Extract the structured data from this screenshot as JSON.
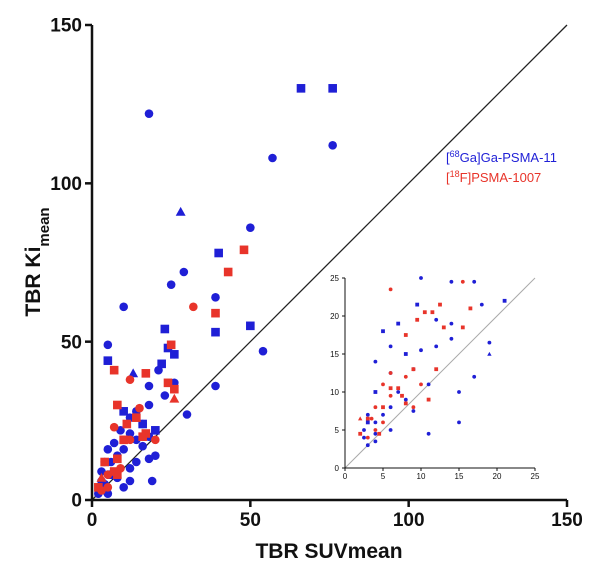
{
  "chart_data": [
    {
      "type": "scatter",
      "title": "",
      "xlabel": "TBR SUVmean",
      "ylabel_main": "TBR Ki",
      "ylabel_sub": "mean",
      "xlim": [
        0,
        150
      ],
      "ylim": [
        0,
        150
      ],
      "xticks": [
        "0",
        "50",
        "100",
        "150"
      ],
      "yticks": [
        "0",
        "50",
        "100",
        "150"
      ],
      "identity_line": true,
      "legend": [
        {
          "pre": "[",
          "sup": "68",
          "post": "Ga]Ga-PSMA-11",
          "color": "#1f1fd6"
        },
        {
          "pre": "[",
          "sup": "18",
          "post": "F]PSMA-1007",
          "color": "#e8342a"
        }
      ],
      "series": [
        {
          "name": "[68Ga]Ga-PSMA-11",
          "color": "#1f1fd6",
          "points": [
            [
              18,
              122,
              "c"
            ],
            [
              66,
              130,
              "s"
            ],
            [
              76,
              130,
              "s"
            ],
            [
              76,
              112,
              "c"
            ],
            [
              57,
              108,
              "c"
            ],
            [
              28,
              91,
              "t"
            ],
            [
              50,
              86,
              "c"
            ],
            [
              40,
              78,
              "s"
            ],
            [
              29,
              72,
              "c"
            ],
            [
              25,
              68,
              "c"
            ],
            [
              10,
              61,
              "c"
            ],
            [
              39,
              64,
              "c"
            ],
            [
              50,
              55,
              "s"
            ],
            [
              39,
              53,
              "s"
            ],
            [
              23,
              54,
              "s"
            ],
            [
              54,
              47,
              "c"
            ],
            [
              5,
              49,
              "c"
            ],
            [
              5,
              44,
              "s"
            ],
            [
              24,
              48,
              "s"
            ],
            [
              22,
              43,
              "s"
            ],
            [
              21,
              41,
              "c"
            ],
            [
              26,
              46,
              "s"
            ],
            [
              13,
              40,
              "t"
            ],
            [
              18,
              36,
              "c"
            ],
            [
              39,
              36,
              "c"
            ],
            [
              26,
              37,
              "c"
            ],
            [
              23,
              33,
              "c"
            ],
            [
              30,
              27,
              "c"
            ],
            [
              14,
              28,
              "c"
            ],
            [
              18,
              30,
              "c"
            ],
            [
              10,
              28,
              "s"
            ],
            [
              12,
              26,
              "c"
            ],
            [
              16,
              24,
              "s"
            ],
            [
              20,
              22,
              "s"
            ],
            [
              9,
              22,
              "c"
            ],
            [
              12,
              21,
              "c"
            ],
            [
              18,
              20,
              "c"
            ],
            [
              14,
              19,
              "c"
            ],
            [
              7,
              18,
              "c"
            ],
            [
              5,
              16,
              "c"
            ],
            [
              16,
              17,
              "c"
            ],
            [
              10,
              16,
              "c"
            ],
            [
              8,
              14,
              "c"
            ],
            [
              18,
              13,
              "c"
            ],
            [
              4,
              12,
              "c"
            ],
            [
              6,
              12,
              "c"
            ],
            [
              20,
              14,
              "c"
            ],
            [
              14,
              12,
              "c"
            ],
            [
              12,
              10,
              "c"
            ],
            [
              3,
              9,
              "c"
            ],
            [
              6,
              8,
              "s"
            ],
            [
              8,
              7,
              "c"
            ],
            [
              3,
              6,
              "c"
            ],
            [
              4,
              5,
              "c"
            ],
            [
              12,
              6,
              "c"
            ],
            [
              19,
              6,
              "c"
            ],
            [
              3,
              4,
              "c"
            ],
            [
              10,
              4,
              "c"
            ],
            [
              4,
              3,
              "c"
            ],
            [
              2,
              2,
              "c"
            ],
            [
              5,
              2,
              "c"
            ],
            [
              16,
              24,
              "c"
            ]
          ]
        },
        {
          "name": "[18F]PSMA-1007",
          "color": "#e8342a",
          "points": [
            [
              48,
              79,
              "s"
            ],
            [
              43,
              72,
              "s"
            ],
            [
              39,
              59,
              "s"
            ],
            [
              32,
              61,
              "c"
            ],
            [
              25,
              49,
              "s"
            ],
            [
              7,
              41,
              "s"
            ],
            [
              12,
              38,
              "c"
            ],
            [
              17,
              40,
              "s"
            ],
            [
              24,
              37,
              "s"
            ],
            [
              26,
              35,
              "s"
            ],
            [
              26,
              32,
              "t"
            ],
            [
              8,
              30,
              "s"
            ],
            [
              15,
              29,
              "c"
            ],
            [
              14,
              26,
              "s"
            ],
            [
              11,
              24,
              "s"
            ],
            [
              7,
              23,
              "c"
            ],
            [
              10,
              19,
              "s"
            ],
            [
              12,
              19,
              "c"
            ],
            [
              17,
              21,
              "s"
            ],
            [
              16,
              20,
              "s"
            ],
            [
              20,
              19,
              "c"
            ],
            [
              8,
              13,
              "s"
            ],
            [
              4,
              12,
              "s"
            ],
            [
              9,
              10,
              "c"
            ],
            [
              8,
              8,
              "s"
            ],
            [
              5,
              8,
              "c"
            ],
            [
              3,
              7,
              "t"
            ],
            [
              2,
              4,
              "s"
            ],
            [
              5,
              4,
              "c"
            ],
            [
              3,
              3,
              "c"
            ],
            [
              7,
              9,
              "s"
            ]
          ]
        }
      ]
    },
    {
      "type": "scatter",
      "title": "",
      "xlim": [
        0,
        25
      ],
      "ylim": [
        0,
        25
      ],
      "xticks": [
        "0",
        "5",
        "10",
        "15",
        "20",
        "25"
      ],
      "yticks": [
        "0",
        "5",
        "10",
        "15",
        "20",
        "25"
      ],
      "identity_line": true,
      "series": [
        {
          "name": "[68Ga]Ga-PSMA-11",
          "color": "#1f1fd6",
          "points": [
            [
              10,
              25,
              "c"
            ],
            [
              14,
              24.5,
              "c"
            ],
            [
              17,
              24.5,
              "c"
            ],
            [
              21,
              22,
              "s"
            ],
            [
              9.5,
              21.5,
              "s"
            ],
            [
              18,
              21.5,
              "c"
            ],
            [
              12,
              19.5,
              "c"
            ],
            [
              14,
              19,
              "c"
            ],
            [
              7,
              19,
              "s"
            ],
            [
              5,
              18,
              "s"
            ],
            [
              14,
              17,
              "c"
            ],
            [
              19,
              16.5,
              "c"
            ],
            [
              12,
              16,
              "c"
            ],
            [
              6,
              16,
              "c"
            ],
            [
              10,
              15.5,
              "c"
            ],
            [
              19,
              15,
              "t"
            ],
            [
              8,
              15,
              "s"
            ],
            [
              4,
              14,
              "c"
            ],
            [
              9,
              13,
              "c"
            ],
            [
              17,
              12,
              "c"
            ],
            [
              6,
              12.5,
              "c"
            ],
            [
              11,
              11,
              "c"
            ],
            [
              7,
              10,
              "c"
            ],
            [
              15,
              10,
              "c"
            ],
            [
              8,
              9,
              "c"
            ],
            [
              4,
              10,
              "s"
            ],
            [
              6,
              8,
              "c"
            ],
            [
              3,
              7,
              "c"
            ],
            [
              5,
              7,
              "c"
            ],
            [
              9,
              7.5,
              "c"
            ],
            [
              4,
              6,
              "c"
            ],
            [
              2.5,
              5,
              "c"
            ],
            [
              3,
              6,
              "s"
            ],
            [
              4,
              4.5,
              "c"
            ],
            [
              11,
              4.5,
              "c"
            ],
            [
              15,
              6,
              "c"
            ],
            [
              3,
              3,
              "c"
            ],
            [
              4,
              3.5,
              "c"
            ],
            [
              2.5,
              4,
              "c"
            ],
            [
              6,
              5,
              "c"
            ]
          ]
        },
        {
          "name": "[18F]PSMA-1007",
          "color": "#e8342a",
          "points": [
            [
              6,
              23.5,
              "c"
            ],
            [
              15.5,
              24.5,
              "c"
            ],
            [
              12.5,
              21.5,
              "s"
            ],
            [
              16.5,
              21,
              "s"
            ],
            [
              10.5,
              20.5,
              "s"
            ],
            [
              11.5,
              20.5,
              "s"
            ],
            [
              9.5,
              19.5,
              "s"
            ],
            [
              15.5,
              18.5,
              "s"
            ],
            [
              13,
              18.5,
              "s"
            ],
            [
              8,
              17.5,
              "s"
            ],
            [
              9,
              13,
              "s"
            ],
            [
              12,
              13,
              "s"
            ],
            [
              6,
              12.5,
              "c"
            ],
            [
              8,
              12,
              "c"
            ],
            [
              5,
              11,
              "c"
            ],
            [
              10,
              11,
              "c"
            ],
            [
              6,
              10.5,
              "s"
            ],
            [
              7,
              10.5,
              "s"
            ],
            [
              6,
              9.5,
              "c"
            ],
            [
              11,
              9,
              "s"
            ],
            [
              8,
              8.5,
              "s"
            ],
            [
              9,
              8,
              "c"
            ],
            [
              7.5,
              9.5,
              "s"
            ],
            [
              4,
              8,
              "c"
            ],
            [
              5,
              8,
              "s"
            ],
            [
              3,
              6.5,
              "s"
            ],
            [
              2,
              6.5,
              "t"
            ],
            [
              3.5,
              6.5,
              "c"
            ],
            [
              5,
              6,
              "c"
            ],
            [
              4,
              5,
              "c"
            ],
            [
              2,
              4.5,
              "s"
            ],
            [
              3,
              4,
              "c"
            ],
            [
              4.5,
              4.5,
              "s"
            ]
          ]
        }
      ]
    }
  ]
}
